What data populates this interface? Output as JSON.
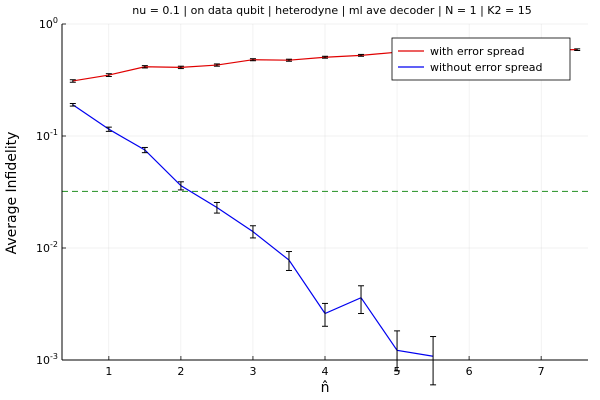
{
  "chart_data": {
    "type": "line",
    "title": "nu = 0.1 | on data qubit | heterodyne | ml ave decoder | N = 1 | K2 = 15",
    "xlabel": "n̂",
    "ylabel": "Average Infidelity",
    "xlim": [
      0.35,
      7.65
    ],
    "ylim": [
      0.001,
      1
    ],
    "yscale": "log",
    "x_ticks": [
      "1",
      "2",
      "3",
      "4",
      "5",
      "6",
      "7"
    ],
    "y_ticks": [
      {
        "base": "10",
        "exp": "-3"
      },
      {
        "base": "10",
        "exp": "-2"
      },
      {
        "base": "10",
        "exp": "-1"
      },
      {
        "base": "10",
        "exp": "0"
      }
    ],
    "grid": true,
    "legend_position": "top-right",
    "series": [
      {
        "name": "with error spread",
        "color": "#e00000",
        "x": [
          0.5,
          1.0,
          1.5,
          2.0,
          2.5,
          3.0,
          3.5,
          4.0,
          4.5,
          5.0,
          5.5,
          6.0,
          6.5,
          7.0,
          7.5
        ],
        "y": [
          0.31,
          0.35,
          0.415,
          0.41,
          0.43,
          0.48,
          0.475,
          0.505,
          0.525,
          0.56,
          0.57,
          0.575,
          0.58,
          0.585,
          0.59
        ],
        "err": [
          0.008,
          0.01,
          0.01,
          0.01,
          0.01,
          0.01,
          0.01,
          0.01,
          0.01,
          0.01,
          0.01,
          0.01,
          0.01,
          0.01,
          0.01
        ]
      },
      {
        "name": "without error spread",
        "color": "#0000f0",
        "x": [
          0.5,
          1.0,
          1.5,
          2.0,
          2.5,
          3.0,
          3.5,
          4.0,
          4.5,
          5.0,
          5.5
        ],
        "y": [
          0.19,
          0.115,
          0.075,
          0.036,
          0.023,
          0.014,
          0.0078,
          0.0026,
          0.0036,
          0.00122,
          0.00108
        ],
        "yerr_low": [
          0.185,
          0.11,
          0.071,
          0.033,
          0.0205,
          0.0123,
          0.0063,
          0.002,
          0.0026,
          0.0008,
          0.0006
        ],
        "yerr_high": [
          0.195,
          0.12,
          0.079,
          0.039,
          0.0255,
          0.0158,
          0.0093,
          0.0032,
          0.0046,
          0.00182,
          0.00162
        ]
      }
    ],
    "reference_line": {
      "y": 0.032,
      "color": "#3a9c3a",
      "style": "dashed"
    }
  }
}
